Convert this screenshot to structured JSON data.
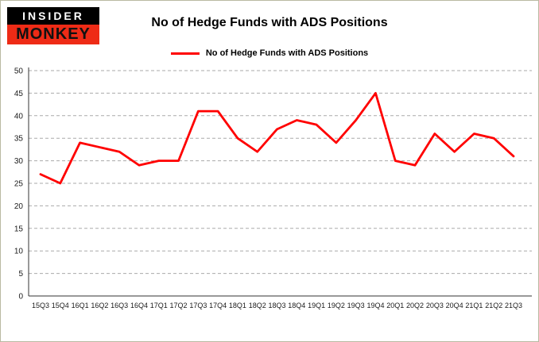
{
  "logo": {
    "top": "INSIDER",
    "bottom": "MONKEY"
  },
  "title": "No of Hedge Funds with ADS Positions",
  "legend": {
    "label": "No of Hedge Funds with ADS Positions"
  },
  "colors": {
    "series_line": "#ff0000",
    "logo_red": "#ee2b16",
    "logo_black": "#000000",
    "grid": "#aaaaaa",
    "axis": "#333333"
  },
  "chart_data": {
    "type": "line",
    "title": "No of Hedge Funds with ADS Positions",
    "categories": [
      "15Q3",
      "15Q4",
      "16Q1",
      "16Q2",
      "16Q3",
      "16Q4",
      "17Q1",
      "17Q2",
      "17Q3",
      "17Q4",
      "18Q1",
      "18Q2",
      "18Q3",
      "18Q4",
      "19Q1",
      "19Q2",
      "19Q3",
      "19Q4",
      "20Q1",
      "20Q2",
      "20Q3",
      "20Q4",
      "21Q1",
      "21Q2",
      "21Q3"
    ],
    "series": [
      {
        "name": "No of Hedge Funds with ADS Positions",
        "values": [
          27,
          25,
          34,
          33,
          32,
          29,
          30,
          30,
          41,
          41,
          35,
          32,
          37,
          39,
          38,
          34,
          39,
          45,
          30,
          29,
          36,
          32,
          36,
          35,
          31
        ]
      }
    ],
    "xlabel": "",
    "ylabel": "",
    "ylim": [
      0,
      50
    ],
    "yticks": [
      0,
      5,
      10,
      15,
      20,
      25,
      30,
      35,
      40,
      45,
      50
    ],
    "grid": true,
    "grid_style": "dashed",
    "legend_position": "top",
    "line_color": "#ff0000"
  }
}
